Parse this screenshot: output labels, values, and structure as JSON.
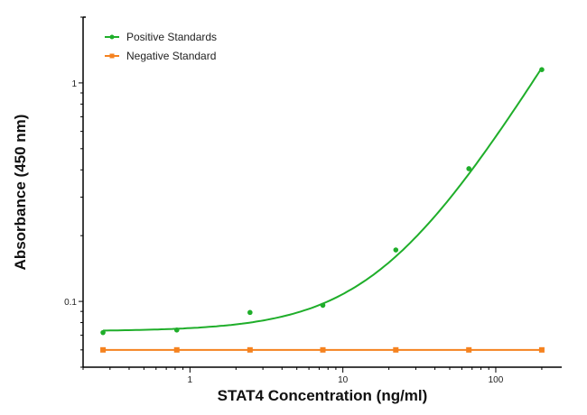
{
  "chart_data": {
    "type": "scatter",
    "title": "",
    "xlabel": "STAT4 Concentration (ng/ml)",
    "ylabel": "Absorbance (450 nm)",
    "xscale": "log",
    "yscale": "log",
    "xlim": [
      0.2,
      270
    ],
    "ylim": [
      0.05,
      2.0
    ],
    "xticks": [
      {
        "value": 1,
        "label": "1"
      },
      {
        "value": 10,
        "label": "10"
      },
      {
        "value": 100,
        "label": "100"
      }
    ],
    "yticks": [
      {
        "value": 0.1,
        "label": "0.1"
      },
      {
        "value": 1,
        "label": "1"
      }
    ],
    "grid": false,
    "legend_position": "top-left",
    "series": [
      {
        "name": "Positive Standards",
        "color": "#1fae2a",
        "marker": "circle",
        "fit": "curve",
        "x": [
          0.27,
          0.82,
          2.47,
          7.4,
          22.2,
          66.7,
          200
        ],
        "y": [
          0.072,
          0.074,
          0.089,
          0.096,
          0.172,
          0.405,
          1.15
        ]
      },
      {
        "name": "Negative Standard",
        "color": "#f5821f",
        "marker": "square",
        "fit": "line",
        "x": [
          0.27,
          0.82,
          2.47,
          7.4,
          22.2,
          66.7,
          200
        ],
        "y": [
          0.06,
          0.06,
          0.06,
          0.06,
          0.06,
          0.06,
          0.06
        ]
      }
    ]
  }
}
